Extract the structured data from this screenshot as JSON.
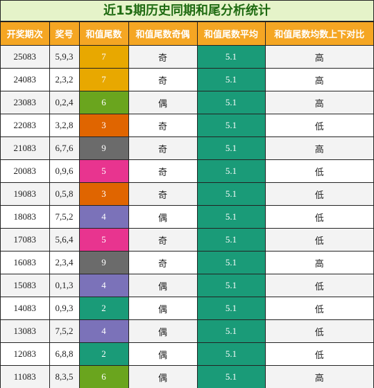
{
  "title": "近15期历史同期和尾分析统计",
  "headers": [
    "开奖期次",
    "奖号",
    "和值尾数",
    "和值尾数奇偶",
    "和值尾数平均",
    "和值尾数均数上下对比"
  ],
  "colors": {
    "gold": "#e8a800",
    "green": "#6aa51e",
    "orange": "#e06500",
    "gray": "#6b6b6b",
    "pink": "#e8348f",
    "purple": "#7b72b9",
    "teal": "#1a9b78",
    "header": "#f5a623",
    "title_bg": "#e5f3c9",
    "title_text": "#1f6b12"
  },
  "rows": [
    {
      "issue": "25083",
      "numbers": "5,9,3",
      "tail": "7",
      "tail_color": "gold",
      "parity": "奇",
      "avg": "5.1",
      "compare": "高"
    },
    {
      "issue": "24083",
      "numbers": "2,3,2",
      "tail": "7",
      "tail_color": "gold",
      "parity": "奇",
      "avg": "5.1",
      "compare": "高"
    },
    {
      "issue": "23083",
      "numbers": "0,2,4",
      "tail": "6",
      "tail_color": "green",
      "parity": "偶",
      "avg": "5.1",
      "compare": "高"
    },
    {
      "issue": "22083",
      "numbers": "3,2,8",
      "tail": "3",
      "tail_color": "orange",
      "parity": "奇",
      "avg": "5.1",
      "compare": "低"
    },
    {
      "issue": "21083",
      "numbers": "6,7,6",
      "tail": "9",
      "tail_color": "gray",
      "parity": "奇",
      "avg": "5.1",
      "compare": "高"
    },
    {
      "issue": "20083",
      "numbers": "0,9,6",
      "tail": "5",
      "tail_color": "pink",
      "parity": "奇",
      "avg": "5.1",
      "compare": "低"
    },
    {
      "issue": "19083",
      "numbers": "0,5,8",
      "tail": "3",
      "tail_color": "orange",
      "parity": "奇",
      "avg": "5.1",
      "compare": "低"
    },
    {
      "issue": "18083",
      "numbers": "7,5,2",
      "tail": "4",
      "tail_color": "purple",
      "parity": "偶",
      "avg": "5.1",
      "compare": "低"
    },
    {
      "issue": "17083",
      "numbers": "5,6,4",
      "tail": "5",
      "tail_color": "pink",
      "parity": "奇",
      "avg": "5.1",
      "compare": "低"
    },
    {
      "issue": "16083",
      "numbers": "2,3,4",
      "tail": "9",
      "tail_color": "gray",
      "parity": "奇",
      "avg": "5.1",
      "compare": "高"
    },
    {
      "issue": "15083",
      "numbers": "0,1,3",
      "tail": "4",
      "tail_color": "purple",
      "parity": "偶",
      "avg": "5.1",
      "compare": "低"
    },
    {
      "issue": "14083",
      "numbers": "0,9,3",
      "tail": "2",
      "tail_color": "teal",
      "parity": "偶",
      "avg": "5.1",
      "compare": "低"
    },
    {
      "issue": "13083",
      "numbers": "7,5,2",
      "tail": "4",
      "tail_color": "purple",
      "parity": "偶",
      "avg": "5.1",
      "compare": "低"
    },
    {
      "issue": "12083",
      "numbers": "6,8,8",
      "tail": "2",
      "tail_color": "teal",
      "parity": "偶",
      "avg": "5.1",
      "compare": "低"
    },
    {
      "issue": "11083",
      "numbers": "8,3,5",
      "tail": "6",
      "tail_color": "green",
      "parity": "偶",
      "avg": "5.1",
      "compare": "高"
    }
  ]
}
